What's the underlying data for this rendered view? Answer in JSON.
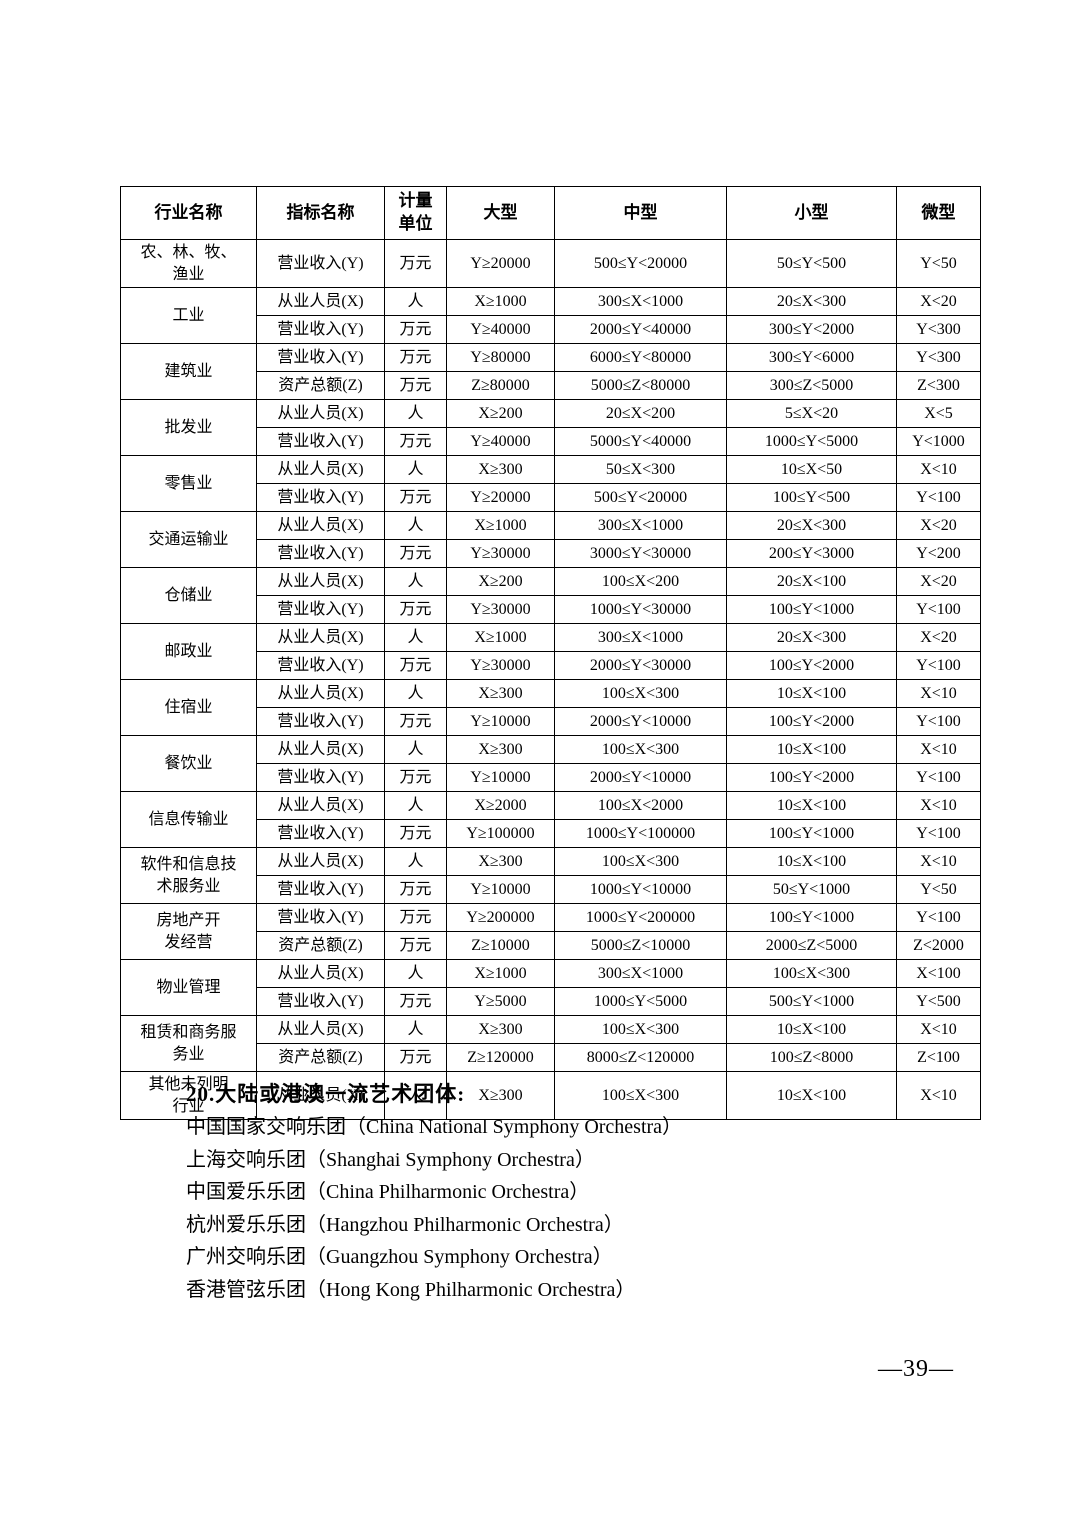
{
  "table": {
    "columns": [
      "行业名称",
      "指标名称",
      "计量\n单位",
      "大型",
      "中型",
      "小型",
      "微型"
    ],
    "industries": [
      {
        "name": "农、林、牧、\n渔业",
        "rows": [
          [
            "营业收入(Y)",
            "万元",
            "Y≥20000",
            "500≤Y<20000",
            "50≤Y<500",
            "Y<50"
          ]
        ]
      },
      {
        "name": "工业",
        "rows": [
          [
            "从业人员(X)",
            "人",
            "X≥1000",
            "300≤X<1000",
            "20≤X<300",
            "X<20"
          ],
          [
            "营业收入(Y)",
            "万元",
            "Y≥40000",
            "2000≤Y<40000",
            "300≤Y<2000",
            "Y<300"
          ]
        ]
      },
      {
        "name": "建筑业",
        "rows": [
          [
            "营业收入(Y)",
            "万元",
            "Y≥80000",
            "6000≤Y<80000",
            "300≤Y<6000",
            "Y<300"
          ],
          [
            "资产总额(Z)",
            "万元",
            "Z≥80000",
            "5000≤Z<80000",
            "300≤Z<5000",
            "Z<300"
          ]
        ]
      },
      {
        "name": "批发业",
        "rows": [
          [
            "从业人员(X)",
            "人",
            "X≥200",
            "20≤X<200",
            "5≤X<20",
            "X<5"
          ],
          [
            "营业收入(Y)",
            "万元",
            "Y≥40000",
            "5000≤Y<40000",
            "1000≤Y<5000",
            "Y<1000"
          ]
        ]
      },
      {
        "name": "零售业",
        "rows": [
          [
            "从业人员(X)",
            "人",
            "X≥300",
            "50≤X<300",
            "10≤X<50",
            "X<10"
          ],
          [
            "营业收入(Y)",
            "万元",
            "Y≥20000",
            "500≤Y<20000",
            "100≤Y<500",
            "Y<100"
          ]
        ]
      },
      {
        "name": "交通运输业",
        "rows": [
          [
            "从业人员(X)",
            "人",
            "X≥1000",
            "300≤X<1000",
            "20≤X<300",
            "X<20"
          ],
          [
            "营业收入(Y)",
            "万元",
            "Y≥30000",
            "3000≤Y<30000",
            "200≤Y<3000",
            "Y<200"
          ]
        ]
      },
      {
        "name": "仓储业",
        "rows": [
          [
            "从业人员(X)",
            "人",
            "X≥200",
            "100≤X<200",
            "20≤X<100",
            "X<20"
          ],
          [
            "营业收入(Y)",
            "万元",
            "Y≥30000",
            "1000≤Y<30000",
            "100≤Y<1000",
            "Y<100"
          ]
        ]
      },
      {
        "name": "邮政业",
        "rows": [
          [
            "从业人员(X)",
            "人",
            "X≥1000",
            "300≤X<1000",
            "20≤X<300",
            "X<20"
          ],
          [
            "营业收入(Y)",
            "万元",
            "Y≥30000",
            "2000≤Y<30000",
            "100≤Y<2000",
            "Y<100"
          ]
        ]
      },
      {
        "name": "住宿业",
        "rows": [
          [
            "从业人员(X)",
            "人",
            "X≥300",
            "100≤X<300",
            "10≤X<100",
            "X<10"
          ],
          [
            "营业收入(Y)",
            "万元",
            "Y≥10000",
            "2000≤Y<10000",
            "100≤Y<2000",
            "Y<100"
          ]
        ]
      },
      {
        "name": "餐饮业",
        "rows": [
          [
            "从业人员(X)",
            "人",
            "X≥300",
            "100≤X<300",
            "10≤X<100",
            "X<10"
          ],
          [
            "营业收入(Y)",
            "万元",
            "Y≥10000",
            "2000≤Y<10000",
            "100≤Y<2000",
            "Y<100"
          ]
        ]
      },
      {
        "name": "信息传输业",
        "rows": [
          [
            "从业人员(X)",
            "人",
            "X≥2000",
            "100≤X<2000",
            "10≤X<100",
            "X<10"
          ],
          [
            "营业收入(Y)",
            "万元",
            "Y≥100000",
            "1000≤Y<100000",
            "100≤Y<1000",
            "Y<100"
          ]
        ]
      },
      {
        "name": "软件和信息技\n术服务业",
        "rows": [
          [
            "从业人员(X)",
            "人",
            "X≥300",
            "100≤X<300",
            "10≤X<100",
            "X<10"
          ],
          [
            "营业收入(Y)",
            "万元",
            "Y≥10000",
            "1000≤Y<10000",
            "50≤Y<1000",
            "Y<50"
          ]
        ]
      },
      {
        "name": "房地产开\n发经营",
        "rows": [
          [
            "营业收入(Y)",
            "万元",
            "Y≥200000",
            "1000≤Y<200000",
            "100≤Y<1000",
            "Y<100"
          ],
          [
            "资产总额(Z)",
            "万元",
            "Z≥10000",
            "5000≤Z<10000",
            "2000≤Z<5000",
            "Z<2000"
          ]
        ]
      },
      {
        "name": "物业管理",
        "rows": [
          [
            "从业人员(X)",
            "人",
            "X≥1000",
            "300≤X<1000",
            "100≤X<300",
            "X<100"
          ],
          [
            "营业收入(Y)",
            "万元",
            "Y≥5000",
            "1000≤Y<5000",
            "500≤Y<1000",
            "Y<500"
          ]
        ]
      },
      {
        "name": "租赁和商务服\n务业",
        "rows": [
          [
            "从业人员(X)",
            "人",
            "X≥300",
            "100≤X<300",
            "10≤X<100",
            "X<10"
          ],
          [
            "资产总额(Z)",
            "万元",
            "Z≥120000",
            "8000≤Z<120000",
            "100≤Z<8000",
            "Z<100"
          ]
        ]
      },
      {
        "name": "其他未列明\n行业",
        "rows": [
          [
            "从业人员(X)",
            "人",
            "X≥300",
            "100≤X<300",
            "10≤X<100",
            "X<10"
          ]
        ]
      }
    ]
  },
  "section": {
    "heading": "20.大陆或港澳一流艺术团体:",
    "items": [
      "中国国家交响乐团（China National Symphony Orchestra）",
      "上海交响乐团（Shanghai Symphony Orchestra）",
      "中国爱乐乐团（China Philharmonic Orchestra）",
      "杭州爱乐乐团（Hangzhou Philharmonic Orchestra）",
      "广州交响乐团（Guangzhou Symphony Orchestra）",
      "香港管弦乐团（Hong Kong Philharmonic Orchestra）"
    ]
  },
  "footer": {
    "page_number": "—39—"
  }
}
